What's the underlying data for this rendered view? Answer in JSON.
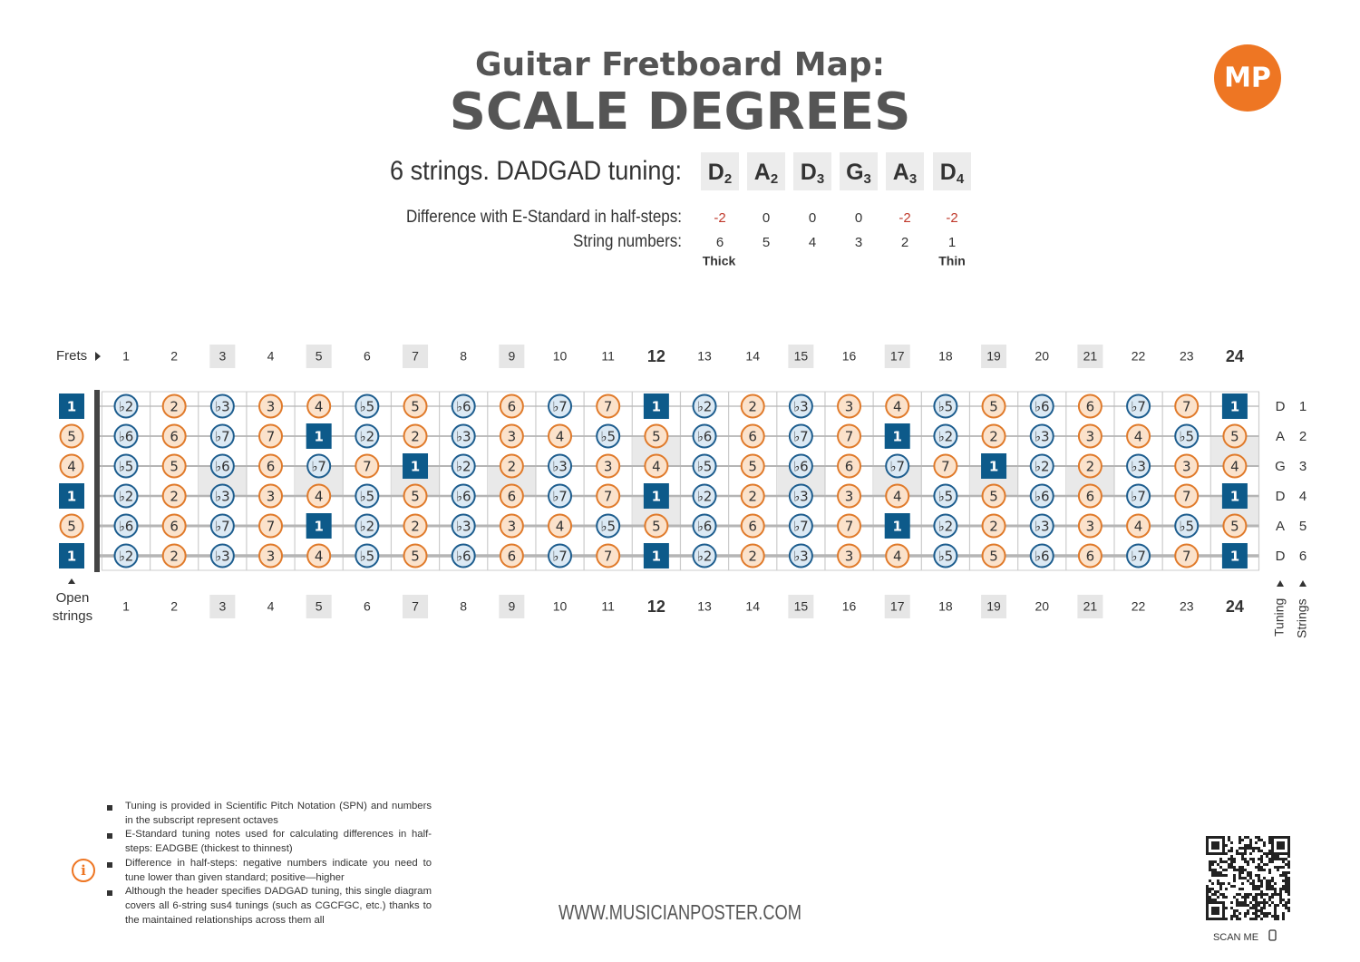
{
  "header": {
    "title": "Guitar Fretboard Map:",
    "subtitle": "SCALE DEGREES",
    "logo": "MP"
  },
  "tuning": {
    "label": "6 strings. DADGAD tuning:",
    "notes": [
      {
        "note": "D",
        "octave": 2
      },
      {
        "note": "A",
        "octave": 2
      },
      {
        "note": "D",
        "octave": 3
      },
      {
        "note": "G",
        "octave": 3
      },
      {
        "note": "A",
        "octave": 3
      },
      {
        "note": "D",
        "octave": 4
      }
    ],
    "difference_label": "Difference with E-Standard in half-steps:",
    "differences": [
      -2,
      0,
      0,
      0,
      -2,
      -2
    ],
    "string_numbers_label": "String numbers:",
    "string_numbers": [
      6,
      5,
      4,
      3,
      2,
      1
    ],
    "thick": "Thick",
    "thin": "Thin"
  },
  "fretboard": {
    "frets_label": "Frets",
    "frets": [
      1,
      2,
      3,
      4,
      5,
      6,
      7,
      8,
      9,
      10,
      11,
      12,
      13,
      14,
      15,
      16,
      17,
      18,
      19,
      20,
      21,
      22,
      23,
      24
    ],
    "inlay_frets": [
      3,
      5,
      7,
      9,
      15,
      17,
      19,
      21
    ],
    "double_inlay_frets": [
      12,
      24
    ],
    "open_strings_label": "Open strings",
    "tuning_label": "Tuning",
    "strings_label": "Strings",
    "strings": [
      {
        "tuning": "D",
        "number": 1,
        "open": "1",
        "frets": [
          "♭2",
          "2",
          "♭3",
          "3",
          "4",
          "♭5",
          "5",
          "♭6",
          "6",
          "♭7",
          "7",
          "1",
          "♭2",
          "2",
          "♭3",
          "3",
          "4",
          "♭5",
          "5",
          "♭6",
          "6",
          "♭7",
          "7",
          "1"
        ]
      },
      {
        "tuning": "A",
        "number": 2,
        "open": "5",
        "frets": [
          "♭6",
          "6",
          "♭7",
          "7",
          "1",
          "♭2",
          "2",
          "♭3",
          "3",
          "4",
          "♭5",
          "5",
          "♭6",
          "6",
          "♭7",
          "7",
          "1",
          "♭2",
          "2",
          "♭3",
          "3",
          "4",
          "♭5",
          "5"
        ]
      },
      {
        "tuning": "G",
        "number": 3,
        "open": "4",
        "frets": [
          "♭5",
          "5",
          "♭6",
          "6",
          "♭7",
          "7",
          "1",
          "♭2",
          "2",
          "♭3",
          "3",
          "4",
          "♭5",
          "5",
          "♭6",
          "6",
          "♭7",
          "7",
          "1",
          "♭2",
          "2",
          "♭3",
          "3",
          "4"
        ]
      },
      {
        "tuning": "D",
        "number": 4,
        "open": "1",
        "frets": [
          "♭2",
          "2",
          "♭3",
          "3",
          "4",
          "♭5",
          "5",
          "♭6",
          "6",
          "♭7",
          "7",
          "1",
          "♭2",
          "2",
          "♭3",
          "3",
          "4",
          "♭5",
          "5",
          "♭6",
          "6",
          "♭7",
          "7",
          "1"
        ]
      },
      {
        "tuning": "A",
        "number": 5,
        "open": "5",
        "frets": [
          "♭6",
          "6",
          "♭7",
          "7",
          "1",
          "♭2",
          "2",
          "♭3",
          "3",
          "4",
          "♭5",
          "5",
          "♭6",
          "6",
          "♭7",
          "7",
          "1",
          "♭2",
          "2",
          "♭3",
          "3",
          "4",
          "♭5",
          "5"
        ]
      },
      {
        "tuning": "D",
        "number": 6,
        "open": "1",
        "frets": [
          "♭2",
          "2",
          "♭3",
          "3",
          "4",
          "♭5",
          "5",
          "♭6",
          "6",
          "♭7",
          "7",
          "1",
          "♭2",
          "2",
          "♭3",
          "3",
          "4",
          "♭5",
          "5",
          "♭6",
          "6",
          "♭7",
          "7",
          "1"
        ]
      }
    ]
  },
  "notes": [
    "Tuning is provided in Scientific Pitch Notation (SPN) and numbers in the subscript represent octaves",
    "E-Standard tuning notes used for calculating differences in half-steps: EADGBE (thickest to thinnest)",
    "Difference in half-steps: negative numbers indicate you need to tune lower than given standard; positive—higher",
    "Although the header specifies DADGAD tuning, this single diagram covers all 6-string sus4 tunings (such as CGCFGC, etc.) thanks to the maintained relationships across them all"
  ],
  "footer": {
    "website": "WWW.MUSICIANPOSTER.COM",
    "scan": "SCAN ME"
  }
}
